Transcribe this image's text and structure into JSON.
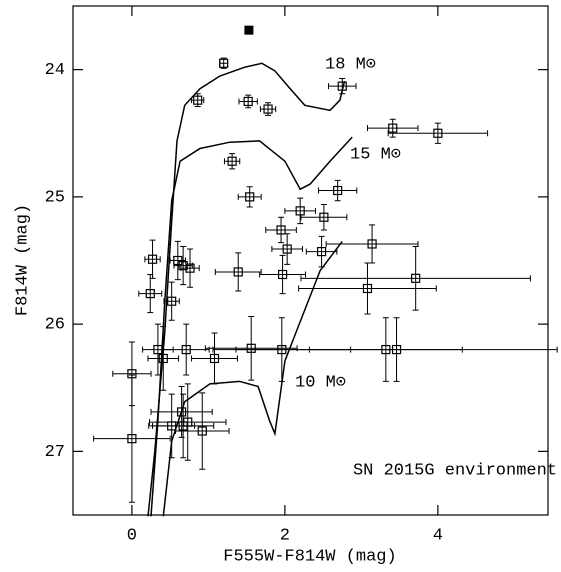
{
  "chart_data": {
    "type": "scatter",
    "xlabel": "F555W-F814W (mag)",
    "ylabel": "F814W (mag)",
    "annotation": "SN 2015G environment",
    "xlim": [
      -0.77,
      5.44
    ],
    "ylim": [
      27.5,
      23.5
    ],
    "xticks": [
      0,
      2,
      4
    ],
    "yticks": [
      24,
      25,
      26,
      27
    ],
    "color": "#000000",
    "points": {
      "x": [
        1.2,
        0.86,
        1.52,
        1.78,
        2.75,
        3.41,
        4.0,
        1.31,
        1.54,
        2.69,
        2.2,
        2.51,
        1.95,
        2.03,
        2.48,
        3.14,
        0.27,
        0.6,
        0.67,
        0.76,
        1.39,
        1.97,
        0.24,
        0.52,
        3.71,
        3.08,
        0.34,
        1.08,
        0.41,
        0.71,
        1.56,
        1.96,
        3.32,
        3.46,
        0.0,
        0.0,
        0.65,
        0.52,
        0.67,
        0.73,
        0.92
      ],
      "y": [
        23.95,
        24.24,
        24.25,
        24.31,
        24.13,
        24.46,
        24.5,
        24.72,
        25.0,
        24.95,
        25.11,
        25.16,
        25.26,
        25.41,
        25.43,
        25.37,
        25.49,
        25.5,
        25.54,
        25.56,
        25.59,
        25.61,
        25.76,
        25.82,
        25.64,
        25.72,
        26.2,
        26.27,
        26.27,
        26.2,
        26.19,
        26.2,
        26.2,
        26.2,
        26.39,
        26.9,
        26.69,
        26.8,
        26.8,
        26.77,
        26.84
      ],
      "xerr": [
        0.05,
        0.08,
        0.12,
        0.1,
        0.18,
        0.33,
        0.65,
        0.1,
        0.15,
        0.25,
        0.2,
        0.3,
        0.2,
        0.2,
        0.2,
        0.6,
        0.1,
        0.1,
        0.12,
        0.12,
        0.3,
        0.3,
        0.15,
        0.1,
        1.5,
        0.9,
        0.2,
        0.3,
        0.2,
        0.3,
        0.6,
        0.9,
        1.0,
        2.1,
        0.25,
        0.5,
        0.4,
        0.3,
        0.4,
        0.5,
        0.35
      ],
      "yerr": [
        0.04,
        0.05,
        0.05,
        0.05,
        0.06,
        0.07,
        0.08,
        0.06,
        0.08,
        0.08,
        0.1,
        0.1,
        0.1,
        0.12,
        0.12,
        0.15,
        0.15,
        0.15,
        0.15,
        0.15,
        0.15,
        0.15,
        0.15,
        0.15,
        0.25,
        0.2,
        0.2,
        0.2,
        0.25,
        0.2,
        0.25,
        0.25,
        0.25,
        0.25,
        0.25,
        0.5,
        0.2,
        0.25,
        0.25,
        0.3,
        0.3
      ]
    },
    "filled_point": {
      "x": 1.53,
      "y": 23.69
    },
    "isochrones": [
      {
        "label": "18 M⊙",
        "x": [
          0.21,
          0.3,
          0.43,
          0.52,
          0.59,
          0.69,
          0.89,
          1.15,
          1.48,
          1.7,
          1.87,
          2.07,
          2.26,
          2.59,
          2.72,
          2.78
        ],
        "y": [
          27.51,
          27.0,
          26.06,
          25.19,
          24.56,
          24.28,
          24.15,
          24.05,
          23.98,
          23.95,
          24.01,
          24.15,
          24.28,
          24.32,
          24.24,
          24.09
        ]
      },
      {
        "label": "15 M⊙",
        "x": [
          0.25,
          0.34,
          0.43,
          0.52,
          0.63,
          0.89,
          1.28,
          1.67,
          2.0,
          2.2,
          2.33,
          2.59,
          2.88
        ],
        "y": [
          27.51,
          26.76,
          25.82,
          25.03,
          24.72,
          24.62,
          24.57,
          24.56,
          24.72,
          24.94,
          24.9,
          24.72,
          24.53
        ]
      },
      {
        "label": "10 M⊙",
        "x": [
          0.41,
          0.52,
          0.69,
          1.02,
          1.41,
          1.65,
          1.8,
          1.87,
          2.0,
          2.2,
          2.46,
          2.75
        ],
        "y": [
          27.51,
          26.92,
          26.61,
          26.47,
          26.45,
          26.49,
          26.76,
          26.86,
          26.29,
          25.98,
          25.58,
          25.35
        ]
      }
    ]
  }
}
